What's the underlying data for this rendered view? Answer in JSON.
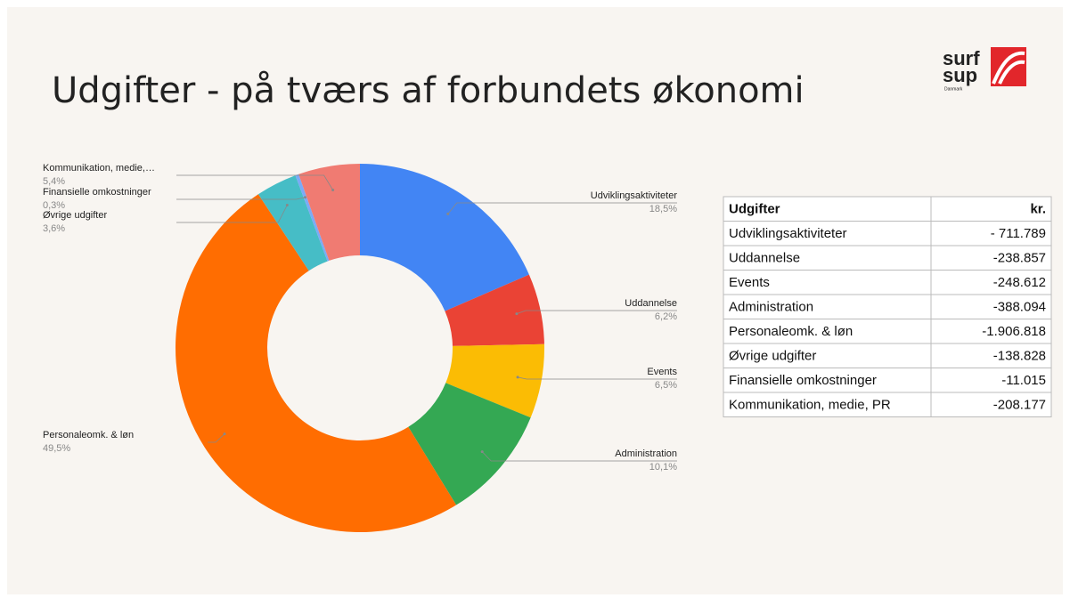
{
  "chart_data": {
    "type": "donut",
    "title": "Udgifter - på tværs af forbundets økonomi",
    "categories": [
      "Udviklingsaktiviteter",
      "Uddannelse",
      "Events",
      "Administration",
      "Personaleomk. & løn",
      "Øvrige udgifter",
      "Finansielle omkostninger",
      "Kommunikation, medie,…"
    ],
    "values": [
      18.5,
      6.2,
      6.5,
      10.1,
      49.5,
      3.6,
      0.3,
      5.4
    ],
    "value_labels": [
      "18,5%",
      "6,2%",
      "6,5%",
      "10,1%",
      "49,5%",
      "3,6%",
      "0,3%",
      "5,4%"
    ],
    "colors": [
      "#4285f4",
      "#ea4335",
      "#fbbc04",
      "#34a853",
      "#ff6d01",
      "#46bdc6",
      "#7baaf7",
      "#f07b72"
    ]
  },
  "table": {
    "header": [
      "Udgifter",
      "kr."
    ],
    "rows": [
      [
        "Udviklingsaktiviteter",
        "- 711.789"
      ],
      [
        "Uddannelse",
        "-238.857"
      ],
      [
        "Events",
        "-248.612"
      ],
      [
        "Administration",
        "-388.094"
      ],
      [
        "Personaleomk. & løn",
        "-1.906.818"
      ],
      [
        "Øvrige udgifter",
        "-138.828"
      ],
      [
        "Finansielle omkostninger",
        "-11.015"
      ],
      [
        "Kommunikation, medie, PR",
        "-208.177"
      ]
    ]
  },
  "logo": {
    "line1": "surf",
    "line2": "sup",
    "sub": "Danmark"
  }
}
